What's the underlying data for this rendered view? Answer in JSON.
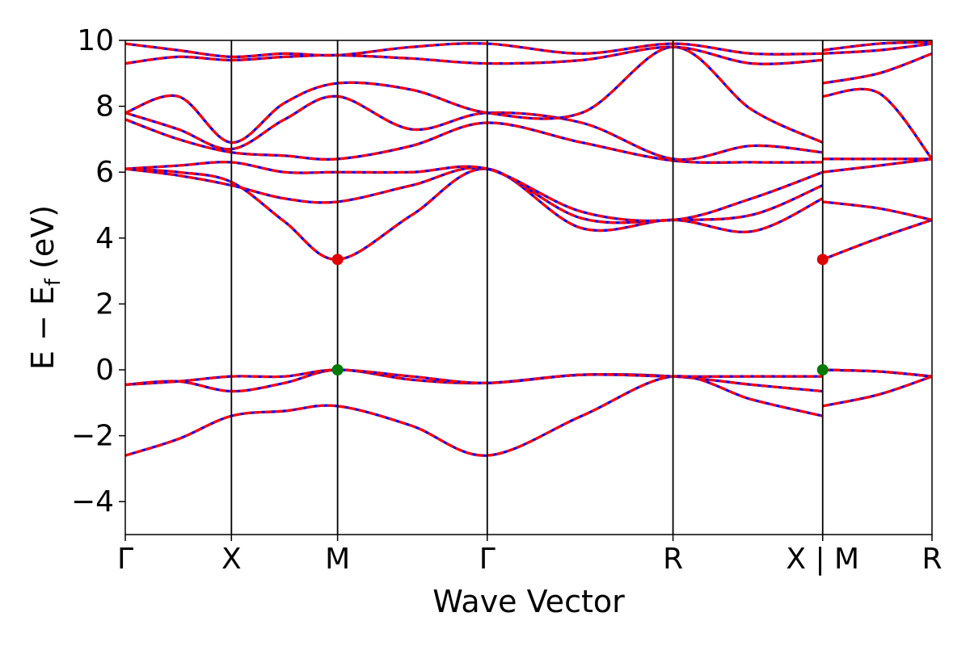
{
  "chart_data": {
    "type": "line",
    "xlabel": "Wave Vector",
    "ylabel": "E − E",
    "ylabel_subscript": "f",
    "ylabel_unit": " (eV)",
    "ylim": [
      -5,
      10
    ],
    "yticks": [
      -4,
      -2,
      0,
      2,
      4,
      6,
      8,
      10
    ],
    "xlim": [
      0,
      7.6
    ],
    "high_symmetry_points": [
      {
        "label": "Γ",
        "x": 0
      },
      {
        "label": "X",
        "x": 1
      },
      {
        "label": "M",
        "x": 2
      },
      {
        "label": "Γ",
        "x": 3.41
      },
      {
        "label": "R",
        "x": 5.16
      },
      {
        "label": "X | M",
        "x": 6.57
      },
      {
        "label": "R",
        "x": 7.6
      }
    ],
    "bands": [
      {
        "name": "",
        "x": [
          0,
          0.5,
          1,
          1.5,
          2,
          2.7,
          3.41,
          4.3,
          5.16,
          5.9,
          6.57,
          6.57,
          7.1,
          7.6
        ],
        "y": [
          -2.6,
          -2.1,
          -1.4,
          -1.25,
          -1.1,
          -1.7,
          -2.6,
          -1.4,
          -0.2,
          -0.9,
          -1.4,
          -1.1,
          -0.75,
          -0.2
        ]
      },
      {
        "name": "",
        "x": [
          0,
          0.5,
          1,
          1.5,
          2,
          2.7,
          3.41,
          4.3,
          5.16,
          5.9,
          6.57,
          6.57,
          7.1,
          7.6
        ],
        "y": [
          -0.45,
          -0.35,
          -0.65,
          -0.4,
          0,
          -0.3,
          -0.4,
          -0.15,
          -0.2,
          -0.45,
          -0.65,
          0,
          -0.05,
          -0.2
        ]
      },
      {
        "name": "",
        "x": [
          0,
          0.5,
          1,
          1.5,
          2,
          2.7,
          3.41,
          4.3,
          5.16,
          5.9,
          6.57,
          6.57,
          7.1,
          7.6
        ],
        "y": [
          -0.45,
          -0.35,
          -0.2,
          -0.2,
          0,
          -0.2,
          -0.4,
          -0.15,
          -0.2,
          -0.2,
          -0.2,
          0,
          -0.05,
          -0.2
        ]
      },
      {
        "name": "",
        "x": [
          0,
          0.5,
          1,
          1.5,
          2,
          2.7,
          3.41,
          4.3,
          5.16,
          5.9,
          6.57,
          6.57,
          7.1,
          7.6
        ],
        "y": [
          6.1,
          6.0,
          5.7,
          4.5,
          3.35,
          4.7,
          6.1,
          4.3,
          4.55,
          4.2,
          5.2,
          3.35,
          4.0,
          4.55
        ]
      },
      {
        "name": "",
        "x": [
          0,
          0.5,
          1,
          1.5,
          2,
          2.7,
          3.41,
          4.3,
          5.16,
          5.9,
          6.57,
          6.57,
          7.1,
          7.6
        ],
        "y": [
          6.1,
          5.9,
          5.6,
          5.2,
          5.1,
          5.6,
          6.1,
          4.6,
          4.55,
          4.7,
          5.6,
          5.1,
          4.9,
          4.55
        ]
      },
      {
        "name": "",
        "x": [
          0,
          0.5,
          1,
          1.5,
          2,
          2.7,
          3.41,
          4.3,
          5.16,
          5.9,
          6.57,
          6.57,
          7.1,
          7.6
        ],
        "y": [
          6.1,
          6.2,
          6.3,
          6.0,
          6.0,
          6.0,
          6.1,
          4.8,
          4.55,
          5.2,
          6.0,
          6.0,
          6.2,
          6.4
        ]
      },
      {
        "name": "",
        "x": [
          0,
          0.5,
          1,
          1.5,
          2,
          2.7,
          3.41,
          4.3,
          5.16,
          5.9,
          6.57,
          6.57,
          7.1,
          7.6
        ],
        "y": [
          7.6,
          7.0,
          6.6,
          6.5,
          6.4,
          6.8,
          7.5,
          6.9,
          6.35,
          6.3,
          6.3,
          6.4,
          6.4,
          6.4
        ]
      },
      {
        "name": "",
        "x": [
          0,
          0.5,
          1,
          1.5,
          2,
          2.7,
          3.41,
          4.3,
          5.16,
          5.9,
          6.57,
          6.57,
          7.1,
          7.6
        ],
        "y": [
          7.8,
          7.3,
          6.7,
          7.6,
          8.3,
          7.3,
          7.8,
          7.5,
          6.4,
          6.8,
          6.6,
          8.3,
          8.4,
          6.4
        ]
      },
      {
        "name": "",
        "x": [
          0,
          0.5,
          1,
          1.5,
          2,
          2.7,
          3.41,
          4.3,
          5.16,
          5.9,
          6.57,
          6.57,
          7.1,
          7.6
        ],
        "y": [
          7.8,
          8.3,
          6.9,
          8.1,
          8.7,
          8.5,
          7.8,
          7.8,
          9.8,
          7.9,
          6.9,
          8.7,
          9.0,
          9.6
        ]
      },
      {
        "name": "",
        "x": [
          0,
          0.5,
          1,
          1.5,
          2,
          2.7,
          3.41,
          4.3,
          5.16,
          5.9,
          6.57,
          6.57,
          7.1,
          7.6
        ],
        "y": [
          9.3,
          9.5,
          9.4,
          9.5,
          9.55,
          9.45,
          9.3,
          9.4,
          9.8,
          9.3,
          9.4,
          9.6,
          9.7,
          9.9
        ]
      },
      {
        "name": "",
        "x": [
          0,
          0.5,
          1,
          1.5,
          2,
          2.7,
          3.41,
          4.3,
          5.16,
          5.9,
          6.57,
          6.57,
          7.1,
          7.6
        ],
        "y": [
          9.9,
          9.7,
          9.5,
          9.6,
          9.55,
          9.8,
          9.9,
          9.6,
          9.9,
          9.6,
          9.6,
          9.7,
          9.9,
          9.95
        ]
      }
    ],
    "band_color": "#ff0000",
    "band_dash_color": "#0000ff",
    "markers": [
      {
        "name": "cbm",
        "x": 2,
        "y": 3.35,
        "color": "#e00000"
      },
      {
        "name": "cbm",
        "x": 6.57,
        "y": 3.35,
        "color": "#e00000"
      },
      {
        "name": "vbm",
        "x": 2,
        "y": 0,
        "color": "#007a00"
      },
      {
        "name": "vbm",
        "x": 6.57,
        "y": 0,
        "color": "#007a00"
      }
    ],
    "grid": false
  }
}
